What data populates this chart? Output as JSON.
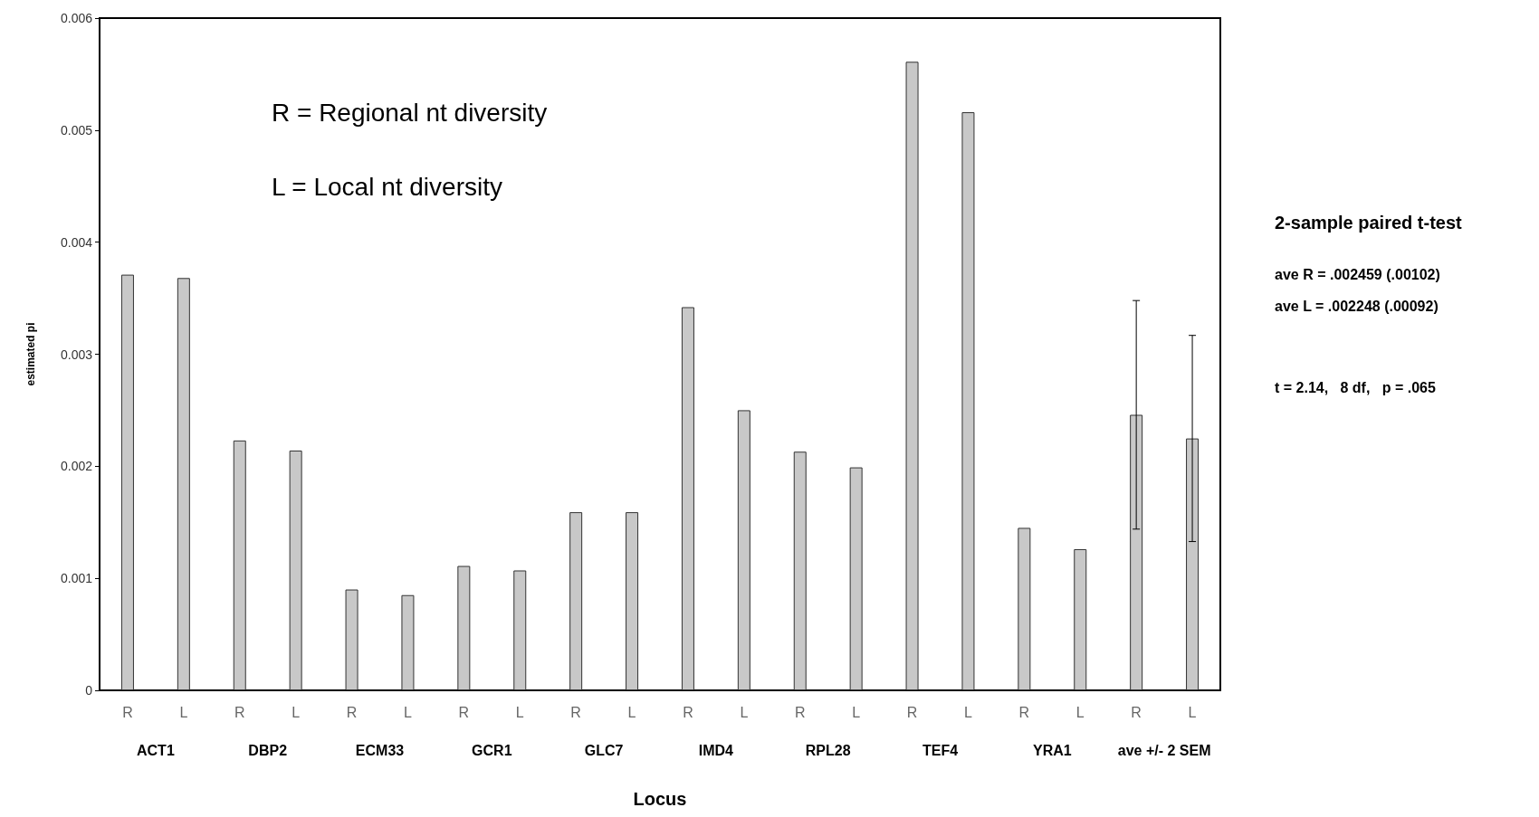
{
  "chart_data": {
    "type": "bar",
    "xlabel": "Locus",
    "ylabel": "estimated pi",
    "categories": [
      "R",
      "L",
      "R",
      "L",
      "R",
      "L",
      "R",
      "L",
      "R",
      "L",
      "R",
      "L",
      "R",
      "L",
      "R",
      "L",
      "R",
      "L",
      "R",
      "L"
    ],
    "values": [
      0.00371,
      0.00368,
      0.00223,
      0.00214,
      0.0009,
      0.00085,
      0.00111,
      0.00107,
      0.00159,
      0.00159,
      0.00342,
      0.0025,
      0.00213,
      0.00199,
      0.00561,
      0.00516,
      0.00145,
      0.00126,
      0.002459,
      0.002248
    ],
    "errors": [
      null,
      null,
      null,
      null,
      null,
      null,
      null,
      null,
      null,
      null,
      null,
      null,
      null,
      null,
      null,
      null,
      null,
      null,
      [
        0.001439,
        0.003479
      ],
      [
        0.001328,
        0.003168
      ]
    ],
    "color": "#c8c8c8",
    "ylim": [
      0,
      0.006
    ],
    "yticks": [
      0,
      0.001,
      0.002,
      0.003,
      0.004,
      0.005,
      0.006
    ],
    "grid": false,
    "annotations": [
      "ACT1",
      "DBP2",
      "ECM33",
      "GCR1",
      "GLC7",
      "IMD4",
      "RPL28",
      "TEF4",
      "YRA1",
      "ave +/- 2 SEM",
      "R = Regional nt diversity",
      "L = Local nt diversity",
      "2-sample paired t-test",
      "ave R = .002459 (.00102)",
      "ave L = .002248 (.00092)",
      "t = 2.14,   8 df,   p = .065"
    ]
  }
}
